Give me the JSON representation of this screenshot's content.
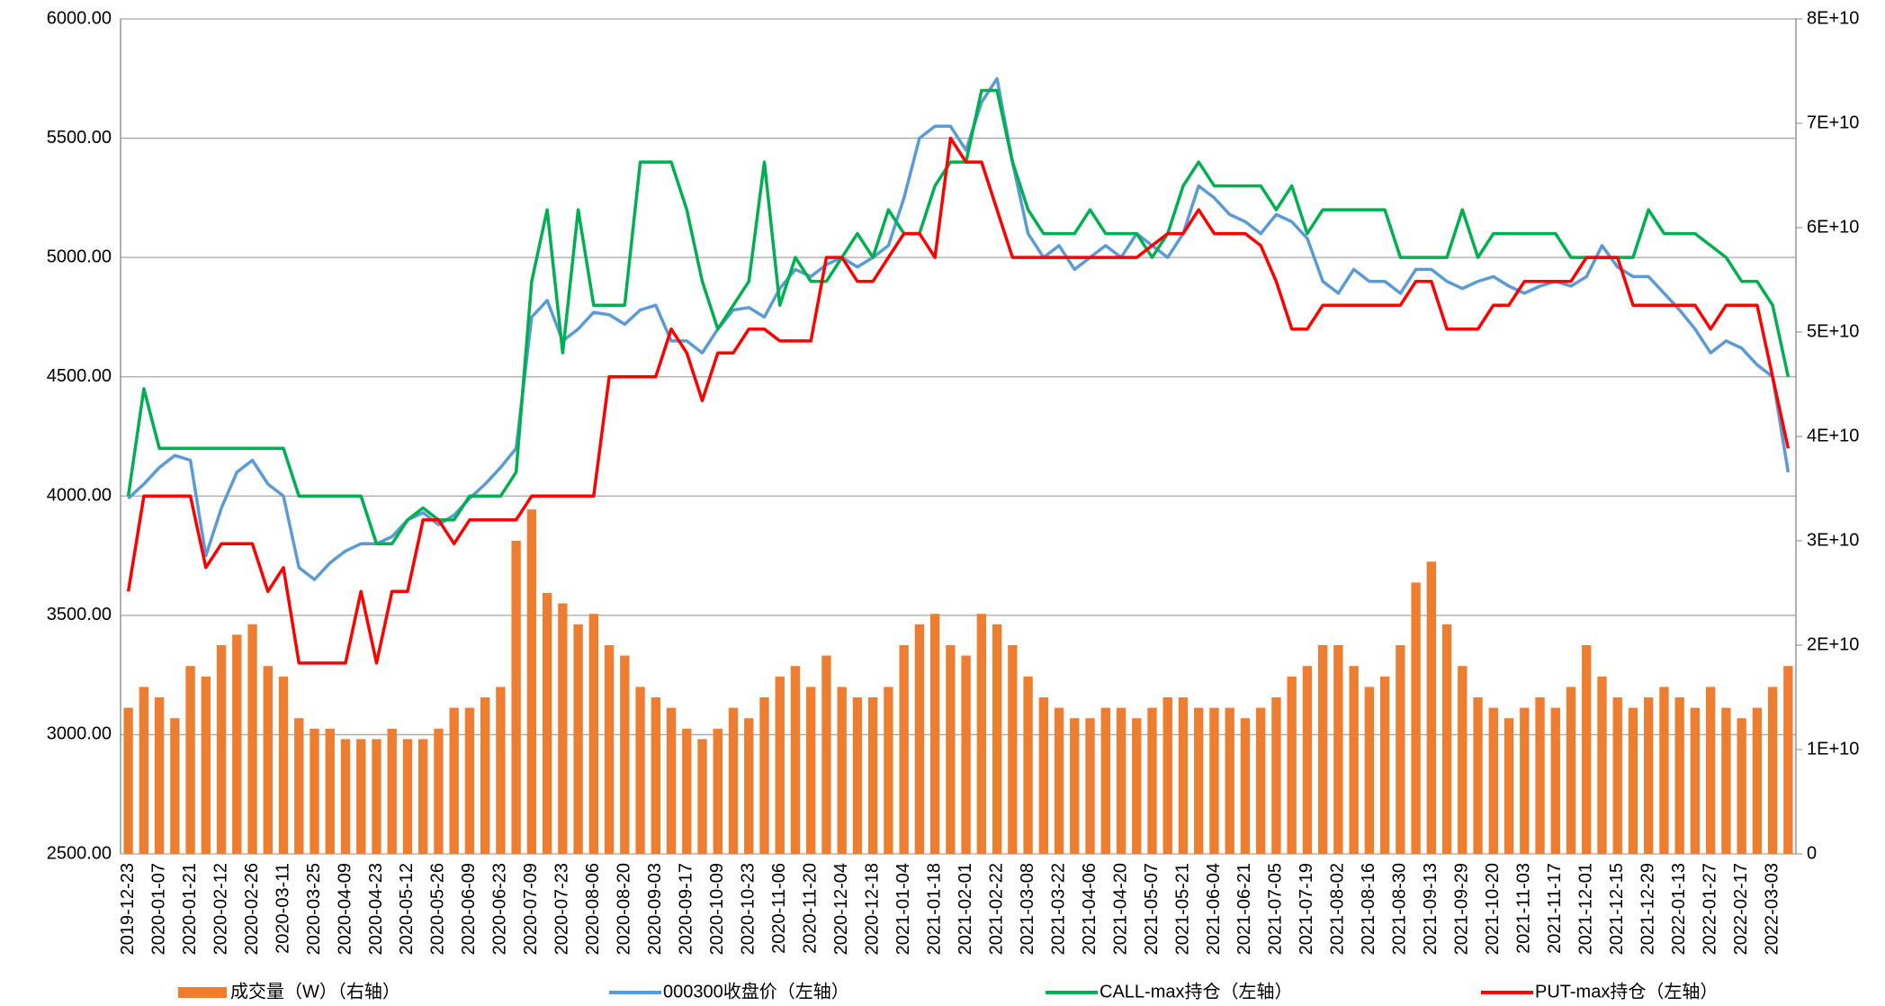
{
  "chart_data": {
    "type": "bar-line",
    "categories": [
      "2019-12-23",
      null,
      "2020-01-07",
      null,
      "2020-01-21",
      null,
      "2020-02-12",
      null,
      "2020-02-26",
      null,
      "2020-03-11",
      null,
      "2020-03-25",
      null,
      "2020-04-09",
      null,
      "2020-04-23",
      null,
      "2020-05-12",
      null,
      "2020-05-26",
      null,
      "2020-06-09",
      null,
      "2020-06-23",
      null,
      "2020-07-09",
      null,
      "2020-07-23",
      null,
      "2020-08-06",
      null,
      "2020-08-20",
      null,
      "2020-09-03",
      null,
      "2020-09-17",
      null,
      "2020-10-09",
      null,
      "2020-10-23",
      null,
      "2020-11-06",
      null,
      "2020-11-20",
      null,
      "2020-12-04",
      null,
      "2020-12-18",
      null,
      "2021-01-04",
      null,
      "2021-01-18",
      null,
      "2021-02-01",
      null,
      "2021-02-22",
      null,
      "2021-03-08",
      null,
      "2021-03-22",
      null,
      "2021-04-06",
      null,
      "2021-04-20",
      null,
      "2021-05-07",
      null,
      "2021-05-21",
      null,
      "2021-06-04",
      null,
      "2021-06-21",
      null,
      "2021-07-05",
      null,
      "2021-07-19",
      null,
      "2021-08-02",
      null,
      "2021-08-16",
      null,
      "2021-08-30",
      null,
      "2021-09-13",
      null,
      "2021-09-29",
      null,
      "2021-10-20",
      null,
      "2021-11-03",
      null,
      "2021-11-17",
      null,
      "2021-12-01",
      null,
      "2021-12-15",
      null,
      "2021-12-29",
      null,
      "2022-01-13",
      null,
      "2022-01-27",
      null,
      "2022-02-17",
      null,
      "2022-03-03",
      null
    ],
    "series": [
      {
        "name": "成交量（W）（右轴）",
        "kind": "bar",
        "axis": "y2",
        "color": "#ED7D31",
        "values": [
          14000000000.0,
          16000000000.0,
          15000000000.0,
          13000000000.0,
          18000000000.0,
          17000000000.0,
          20000000000.0,
          21000000000.0,
          22000000000.0,
          18000000000.0,
          17000000000.0,
          13000000000.0,
          12000000000.0,
          12000000000.0,
          11000000000.0,
          11000000000.0,
          11000000000.0,
          12000000000.0,
          11000000000.0,
          11000000000.0,
          12000000000.0,
          14000000000.0,
          14000000000.0,
          15000000000.0,
          16000000000.0,
          30000000000.0,
          33000000000.0,
          25000000000.0,
          24000000000.0,
          22000000000.0,
          23000000000.0,
          20000000000.0,
          19000000000.0,
          16000000000.0,
          15000000000.0,
          14000000000.0,
          12000000000.0,
          11000000000.0,
          12000000000.0,
          14000000000.0,
          13000000000.0,
          15000000000.0,
          17000000000.0,
          18000000000.0,
          16000000000.0,
          19000000000.0,
          16000000000.0,
          15000000000.0,
          15000000000.0,
          16000000000.0,
          20000000000.0,
          22000000000.0,
          23000000000.0,
          20000000000.0,
          19000000000.0,
          23000000000.0,
          22000000000.0,
          20000000000.0,
          17000000000.0,
          15000000000.0,
          14000000000.0,
          13000000000.0,
          13000000000.0,
          14000000000.0,
          14000000000.0,
          13000000000.0,
          14000000000.0,
          15000000000.0,
          15000000000.0,
          14000000000.0,
          14000000000.0,
          14000000000.0,
          13000000000.0,
          14000000000.0,
          15000000000.0,
          17000000000.0,
          18000000000.0,
          20000000000.0,
          20000000000.0,
          18000000000.0,
          16000000000.0,
          17000000000.0,
          20000000000.0,
          26000000000.0,
          28000000000.0,
          22000000000.0,
          18000000000.0,
          15000000000.0,
          14000000000.0,
          13000000000.0,
          14000000000.0,
          15000000000.0,
          14000000000.0,
          16000000000.0,
          20000000000.0,
          17000000000.0,
          15000000000.0,
          14000000000.0,
          15000000000.0,
          16000000000.0,
          15000000000.0,
          14000000000.0,
          16000000000.0,
          14000000000.0,
          13000000000.0,
          14000000000.0,
          16000000000.0,
          18000000000.0
        ]
      },
      {
        "name": "000300收盘价（左轴）",
        "kind": "line",
        "color": "#5B9BD5",
        "values": [
          3990,
          4050,
          4120,
          4170,
          4150,
          3750,
          3950,
          4100,
          4150,
          4050,
          4000,
          3700,
          3650,
          3720,
          3770,
          3800,
          3800,
          3830,
          3900,
          3930,
          3880,
          3920,
          3990,
          4050,
          4120,
          4200,
          4750,
          4820,
          4650,
          4700,
          4770,
          4760,
          4720,
          4780,
          4800,
          4650,
          4650,
          4600,
          4700,
          4780,
          4790,
          4750,
          4870,
          4950,
          4920,
          4970,
          5000,
          4960,
          5000,
          5050,
          5250,
          5500,
          5550,
          5550,
          5450,
          5650,
          5750,
          5400,
          5100,
          5000,
          5050,
          4950,
          5000,
          5050,
          5000,
          5100,
          5050,
          5000,
          5100,
          5300,
          5250,
          5180,
          5150,
          5100,
          5180,
          5150,
          5080,
          4900,
          4850,
          4950,
          4900,
          4900,
          4850,
          4950,
          4950,
          4900,
          4870,
          4900,
          4920,
          4880,
          4850,
          4880,
          4900,
          4880,
          4920,
          5050,
          4960,
          4920,
          4920,
          4850,
          4780,
          4700,
          4600,
          4650,
          4620,
          4550,
          4500,
          4100
        ]
      },
      {
        "name": "CALL-max持仓（左轴）",
        "kind": "line",
        "color": "#00B050",
        "values": [
          4000,
          4450,
          4200,
          4200,
          4200,
          4200,
          4200,
          4200,
          4200,
          4200,
          4200,
          4000,
          4000,
          4000,
          4000,
          4000,
          3800,
          3800,
          3900,
          3950,
          3900,
          3900,
          4000,
          4000,
          4000,
          4100,
          4900,
          5200,
          4600,
          5200,
          4800,
          4800,
          4800,
          5400,
          5400,
          5400,
          5200,
          4900,
          4700,
          4800,
          4900,
          5400,
          4800,
          5000,
          4900,
          4900,
          5000,
          5100,
          5000,
          5200,
          5100,
          5100,
          5300,
          5400,
          5400,
          5700,
          5700,
          5400,
          5200,
          5100,
          5100,
          5100,
          5200,
          5100,
          5100,
          5100,
          5000,
          5100,
          5300,
          5400,
          5300,
          5300,
          5300,
          5300,
          5200,
          5300,
          5100,
          5200,
          5200,
          5200,
          5200,
          5200,
          5000,
          5000,
          5000,
          5000,
          5200,
          5000,
          5100,
          5100,
          5100,
          5100,
          5100,
          5000,
          5000,
          5000,
          5000,
          5000,
          5200,
          5100,
          5100,
          5100,
          5050,
          5000,
          4900,
          4900,
          4800,
          4500
        ]
      },
      {
        "name": "PUT-max持仓（左轴）",
        "kind": "line",
        "color": "#FF0000",
        "values": [
          3600,
          4000,
          4000,
          4000,
          4000,
          3700,
          3800,
          3800,
          3800,
          3600,
          3700,
          3300,
          3300,
          3300,
          3300,
          3600,
          3300,
          3600,
          3600,
          3900,
          3900,
          3800,
          3900,
          3900,
          3900,
          3900,
          4000,
          4000,
          4000,
          4000,
          4000,
          4500,
          4500,
          4500,
          4500,
          4700,
          4600,
          4400,
          4600,
          4600,
          4700,
          4700,
          4650,
          4650,
          4650,
          5000,
          5000,
          4900,
          4900,
          5000,
          5100,
          5100,
          5000,
          5500,
          5400,
          5400,
          5200,
          5000,
          5000,
          5000,
          5000,
          5000,
          5000,
          5000,
          5000,
          5000,
          5050,
          5100,
          5100,
          5200,
          5100,
          5100,
          5100,
          5050,
          4900,
          4700,
          4700,
          4800,
          4800,
          4800,
          4800,
          4800,
          4800,
          4900,
          4900,
          4700,
          4700,
          4700,
          4800,
          4800,
          4900,
          4900,
          4900,
          4900,
          5000,
          5000,
          5000,
          4800,
          4800,
          4800,
          4800,
          4800,
          4700,
          4800,
          4800,
          4800,
          4500,
          4200
        ]
      }
    ],
    "ylim": [
      2500,
      6000
    ],
    "yticks": [
      {
        "value": 2500,
        "label": "2500.00"
      },
      {
        "value": 3000,
        "label": "3000.00"
      },
      {
        "value": 3500,
        "label": "3500.00"
      },
      {
        "value": 4000,
        "label": "4000.00"
      },
      {
        "value": 4500,
        "label": "4500.00"
      },
      {
        "value": 5000,
        "label": "5000.00"
      },
      {
        "value": 5500,
        "label": "5500.00"
      },
      {
        "value": 6000,
        "label": "6000.00"
      }
    ],
    "y2lim": [
      0,
      80000000000.0
    ],
    "y2ticks": [
      0,
      {
        "value": 10000000000.0,
        "label": "1E+10"
      },
      {
        "value": 20000000000.0,
        "label": "2E+10"
      },
      {
        "value": 30000000000.0,
        "label": "3E+10"
      },
      {
        "value": 40000000000.0,
        "label": "4E+10"
      },
      {
        "value": 50000000000.0,
        "label": "5E+10"
      },
      {
        "value": 60000000000.0,
        "label": "6E+10"
      },
      {
        "value": 70000000000.0,
        "label": "7E+10"
      },
      {
        "value": 80000000000.0,
        "label": "8E+10"
      }
    ],
    "grid": true,
    "legend": "bottom"
  }
}
